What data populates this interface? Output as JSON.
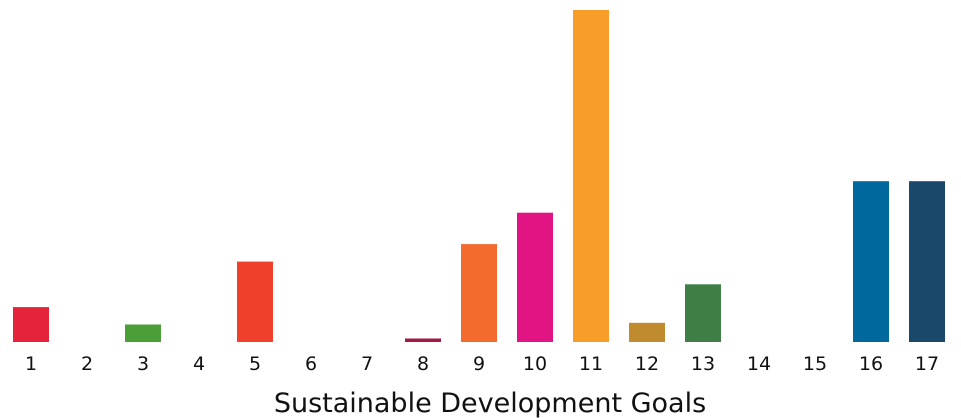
{
  "chart_data": {
    "type": "bar",
    "xlabel": "Sustainable Development Goals",
    "ylabel": "",
    "title": "",
    "grid": false,
    "categories": [
      "1",
      "2",
      "3",
      "4",
      "5",
      "6",
      "7",
      "8",
      "9",
      "10",
      "11",
      "12",
      "13",
      "14",
      "15",
      "16",
      "17"
    ],
    "values": [
      1.0,
      0,
      0.5,
      0,
      2.3,
      0,
      0,
      0.1,
      2.8,
      3.7,
      9.5,
      0.55,
      1.65,
      0,
      0,
      4.6,
      4.6
    ],
    "ylim": [
      0,
      9.5
    ],
    "colors": [
      "#e5243b",
      "#dda63a",
      "#4c9f38",
      "#c5192d",
      "#ef402b",
      "#26bde2",
      "#fcc30b",
      "#a21942",
      "#f26a2d",
      "#e01483",
      "#f89d2a",
      "#bf8b2e",
      "#3f7e44",
      "#0a97d9",
      "#56c02b",
      "#00689d",
      "#19486a"
    ]
  }
}
